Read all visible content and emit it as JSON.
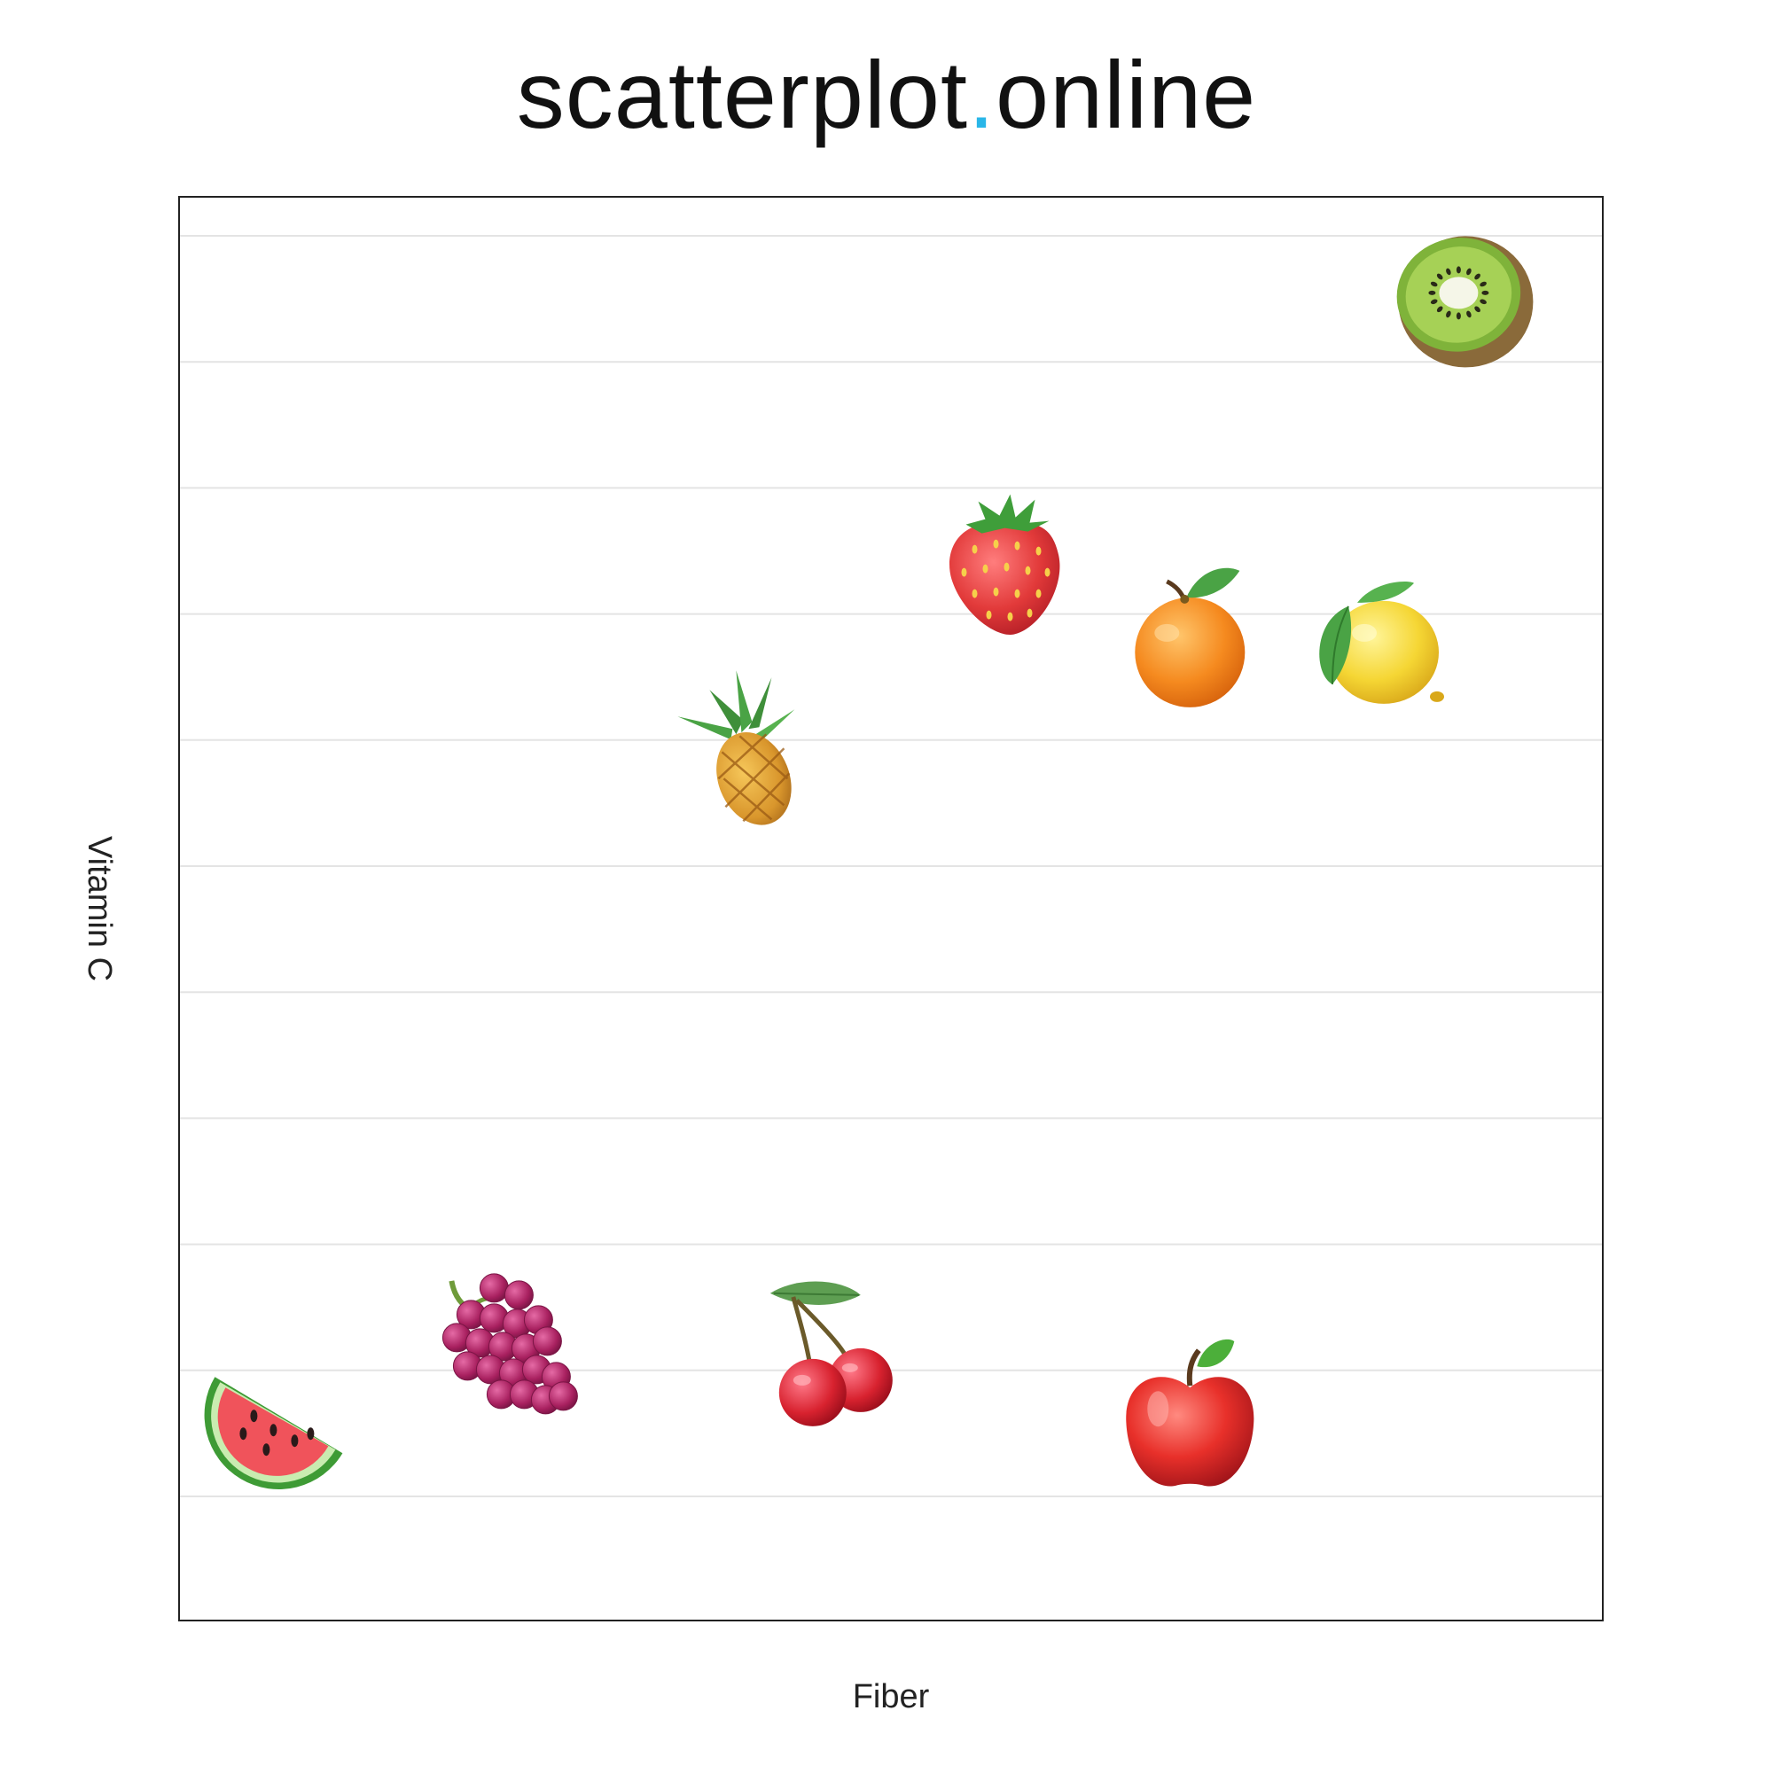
{
  "brand": {
    "name_part1": "scatterplot",
    "name_dot": ".",
    "name_part2": "online",
    "dot_color": "#29b6e8"
  },
  "chart_data": {
    "type": "scatter",
    "title": "",
    "xlabel": "Fiber",
    "ylabel": "Vitamin C",
    "xlim": [
      0,
      100
    ],
    "ylim": [
      0,
      100
    ],
    "grid": {
      "horizontal": true,
      "vertical": false,
      "lines": 11
    },
    "marker": "fruit emoji",
    "points": [
      {
        "item": "watermelon",
        "icon": "watermelon-icon",
        "x": 7,
        "y": 14
      },
      {
        "item": "grapes",
        "icon": "grapes-icon",
        "x": 23,
        "y": 19
      },
      {
        "item": "cherries",
        "icon": "cherries-icon",
        "x": 46,
        "y": 18
      },
      {
        "item": "apple",
        "icon": "apple-icon",
        "x": 71,
        "y": 14
      },
      {
        "item": "pineapple",
        "icon": "pineapple-icon",
        "x": 40,
        "y": 61
      },
      {
        "item": "strawberry",
        "icon": "strawberry-icon",
        "x": 58,
        "y": 74
      },
      {
        "item": "orange",
        "icon": "orange-icon",
        "x": 71,
        "y": 69
      },
      {
        "item": "lemon",
        "icon": "lemon-icon",
        "x": 84,
        "y": 69
      },
      {
        "item": "kiwi",
        "icon": "kiwi-icon",
        "x": 90,
        "y": 93
      }
    ]
  },
  "colors": {
    "frame": "#222222",
    "grid": "#e4e4e4",
    "text": "#222222"
  }
}
